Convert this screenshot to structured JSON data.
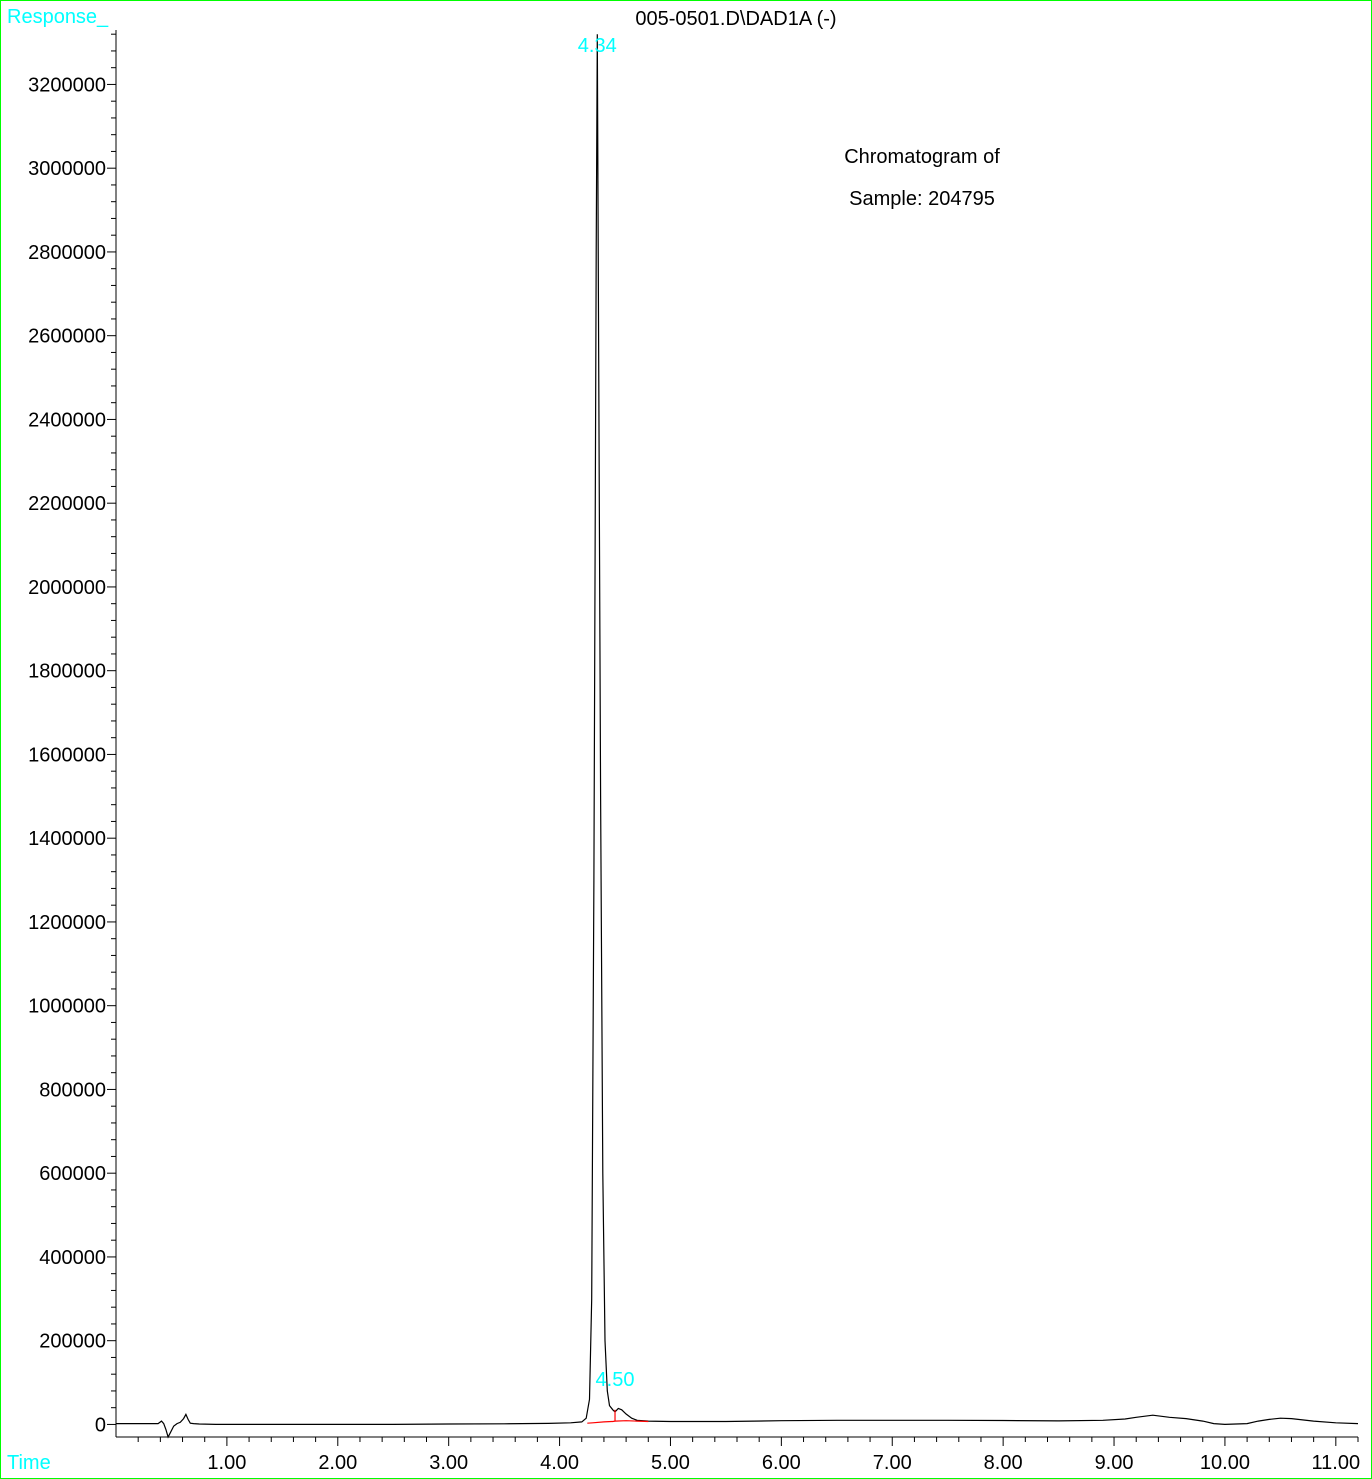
{
  "chart_data": {
    "type": "line",
    "title": "005-0501.D\\DAD1A (-)",
    "ylabel": "Response_",
    "xlabel": "Time",
    "xlim": [
      0.0,
      11.2
    ],
    "ylim": [
      -30000,
      3330000
    ],
    "x_ticks": [
      1.0,
      2.0,
      3.0,
      4.0,
      5.0,
      6.0,
      7.0,
      8.0,
      9.0,
      10.0,
      11.0
    ],
    "x_tick_labels": [
      "1.00",
      "2.00",
      "3.00",
      "4.00",
      "5.00",
      "6.00",
      "7.00",
      "8.00",
      "9.00",
      "10.00",
      "11.00"
    ],
    "y_ticks": [
      0,
      200000,
      400000,
      600000,
      800000,
      1000000,
      1200000,
      1400000,
      1600000,
      1800000,
      2000000,
      2200000,
      2400000,
      2600000,
      2800000,
      3000000,
      3200000
    ],
    "y_tick_labels": [
      "0",
      "200000",
      "400000",
      "600000",
      "800000",
      "1000000",
      "1200000",
      "1400000",
      "1600000",
      "1800000",
      "2000000",
      "2200000",
      "2400000",
      "2600000",
      "2800000",
      "3000000",
      "3200000"
    ],
    "annotations": [
      "Chromatogram of",
      "Sample:  204795"
    ],
    "peaks": [
      {
        "label": "4.34",
        "x": 4.34,
        "y": 3320000
      },
      {
        "label": "4.50",
        "x": 4.5,
        "y": 35000
      }
    ],
    "series": [
      {
        "color": "#000000",
        "x": [
          0.0,
          0.38,
          0.41,
          0.43,
          0.45,
          0.47,
          0.49,
          0.52,
          0.55,
          0.58,
          0.61,
          0.63,
          0.65,
          0.67,
          0.7,
          0.75,
          0.9,
          1.5,
          2.5,
          3.0,
          3.5,
          3.9,
          4.1,
          4.2,
          4.24,
          4.27,
          4.29,
          4.31,
          4.33,
          4.34,
          4.35,
          4.37,
          4.39,
          4.41,
          4.43,
          4.45,
          4.48,
          4.5,
          4.53,
          4.56,
          4.6,
          4.65,
          4.7,
          4.8,
          5.0,
          5.5,
          6.0,
          6.5,
          7.0,
          7.5,
          8.0,
          8.5,
          8.9,
          9.1,
          9.2,
          9.35,
          9.5,
          9.65,
          9.8,
          9.9,
          10.0,
          10.1,
          10.2,
          10.3,
          10.4,
          10.5,
          10.6,
          10.8,
          11.0,
          11.2
        ],
        "y": [
          2000,
          2000,
          8000,
          2000,
          -12000,
          -30000,
          -20000,
          -4000,
          2000,
          5000,
          14000,
          24000,
          12000,
          3000,
          2000,
          1000,
          0,
          0,
          0,
          1000,
          1500,
          2500,
          4000,
          6000,
          15000,
          60000,
          300000,
          1300000,
          2800000,
          3320000,
          2700000,
          1500000,
          600000,
          200000,
          80000,
          45000,
          35000,
          30000,
          38000,
          35000,
          25000,
          15000,
          10000,
          8000,
          7000,
          7000,
          9000,
          10000,
          10000,
          10000,
          9500,
          8500,
          10000,
          13000,
          17000,
          22000,
          17000,
          14000,
          8000,
          2000,
          0,
          1000,
          2000,
          8000,
          12000,
          15000,
          14000,
          8000,
          4000,
          2000
        ]
      },
      {
        "color": "#ff0000",
        "x": [
          4.25,
          4.3,
          4.4,
          4.47,
          4.48,
          4.5,
          4.6,
          4.7,
          4.8
        ],
        "y": [
          3000,
          4000,
          6000,
          7000,
          7000,
          8000,
          9000,
          8000,
          7000
        ]
      }
    ],
    "grid": false,
    "legend": "none"
  },
  "colors": {
    "frame": "#00ff00",
    "accent_text": "#00ffff",
    "trace": "#000000",
    "baseline": "#ff0000"
  }
}
